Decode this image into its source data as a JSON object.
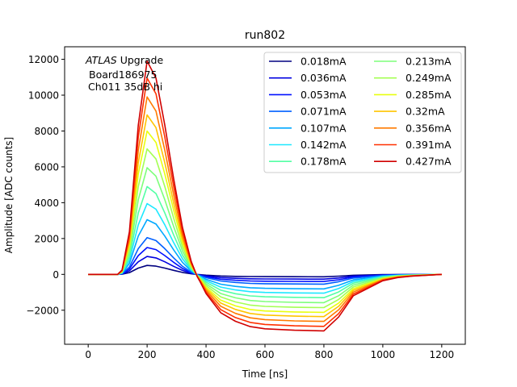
{
  "chart_data": {
    "type": "line",
    "title": "run802",
    "xlabel": "Time [ns]",
    "ylabel": "Amplitude [ADC counts]",
    "xlim": [
      -80,
      1280
    ],
    "ylim": [
      -3900,
      12700
    ],
    "xticks": [
      0,
      200,
      400,
      600,
      800,
      1000,
      1200
    ],
    "yticks": [
      -2000,
      0,
      2000,
      4000,
      6000,
      8000,
      10000,
      12000
    ],
    "xtick_labels": [
      "0",
      "200",
      "400",
      "600",
      "800",
      "1000",
      "1200"
    ],
    "ytick_labels": [
      "−2000",
      "0",
      "2000",
      "4000",
      "6000",
      "8000",
      "10000",
      "12000"
    ],
    "annotation": {
      "italic": "ATLAS",
      "rest": " Upgrade",
      "line2": "Board186975",
      "line3": "Ch011 35dB hi"
    },
    "legend_placement": "upper-right",
    "legend_columns": 2,
    "grid": false,
    "pulse_shape": {
      "x": [
        0,
        100,
        115,
        140,
        170,
        200,
        230,
        260,
        290,
        320,
        350,
        370,
        380,
        400,
        450,
        500,
        550,
        600,
        700,
        800,
        850,
        900,
        1000,
        1050,
        1100,
        1200
      ],
      "y_fraction_of_peak": [
        0,
        0,
        0.02,
        0.2,
        0.7,
        1.0,
        0.92,
        0.7,
        0.45,
        0.22,
        0.06,
        -0.01,
        -0.035,
        -0.09,
        -0.18,
        -0.22,
        -0.245,
        -0.255,
        -0.262,
        -0.265,
        -0.2,
        -0.1,
        -0.03,
        -0.015,
        -0.008,
        0
      ]
    },
    "series": [
      {
        "name": "0.018mA",
        "color": "#000080",
        "peak": 500
      },
      {
        "name": "0.036mA",
        "color": "#0000e0",
        "peak": 1000
      },
      {
        "name": "0.053mA",
        "color": "#0010ff",
        "peak": 1500
      },
      {
        "name": "0.071mA",
        "color": "#0060ff",
        "peak": 2050
      },
      {
        "name": "0.107mA",
        "color": "#00a8ff",
        "peak": 3050
      },
      {
        "name": "0.142mA",
        "color": "#1ce8ff",
        "peak": 3950
      },
      {
        "name": "0.178mA",
        "color": "#53ffa4",
        "peak": 4900
      },
      {
        "name": "0.213mA",
        "color": "#7dff7a",
        "peak": 5950
      },
      {
        "name": "0.249mA",
        "color": "#a4ff53",
        "peak": 7000
      },
      {
        "name": "0.285mA",
        "color": "#e8ff0f",
        "peak": 8000
      },
      {
        "name": "0.32mA",
        "color": "#ffc400",
        "peak": 8900
      },
      {
        "name": "0.356mA",
        "color": "#ff7a00",
        "peak": 9900
      },
      {
        "name": "0.391mA",
        "color": "#ff3000",
        "peak": 10950
      },
      {
        "name": "0.427mA",
        "color": "#d00000",
        "peak": 11900
      }
    ]
  }
}
